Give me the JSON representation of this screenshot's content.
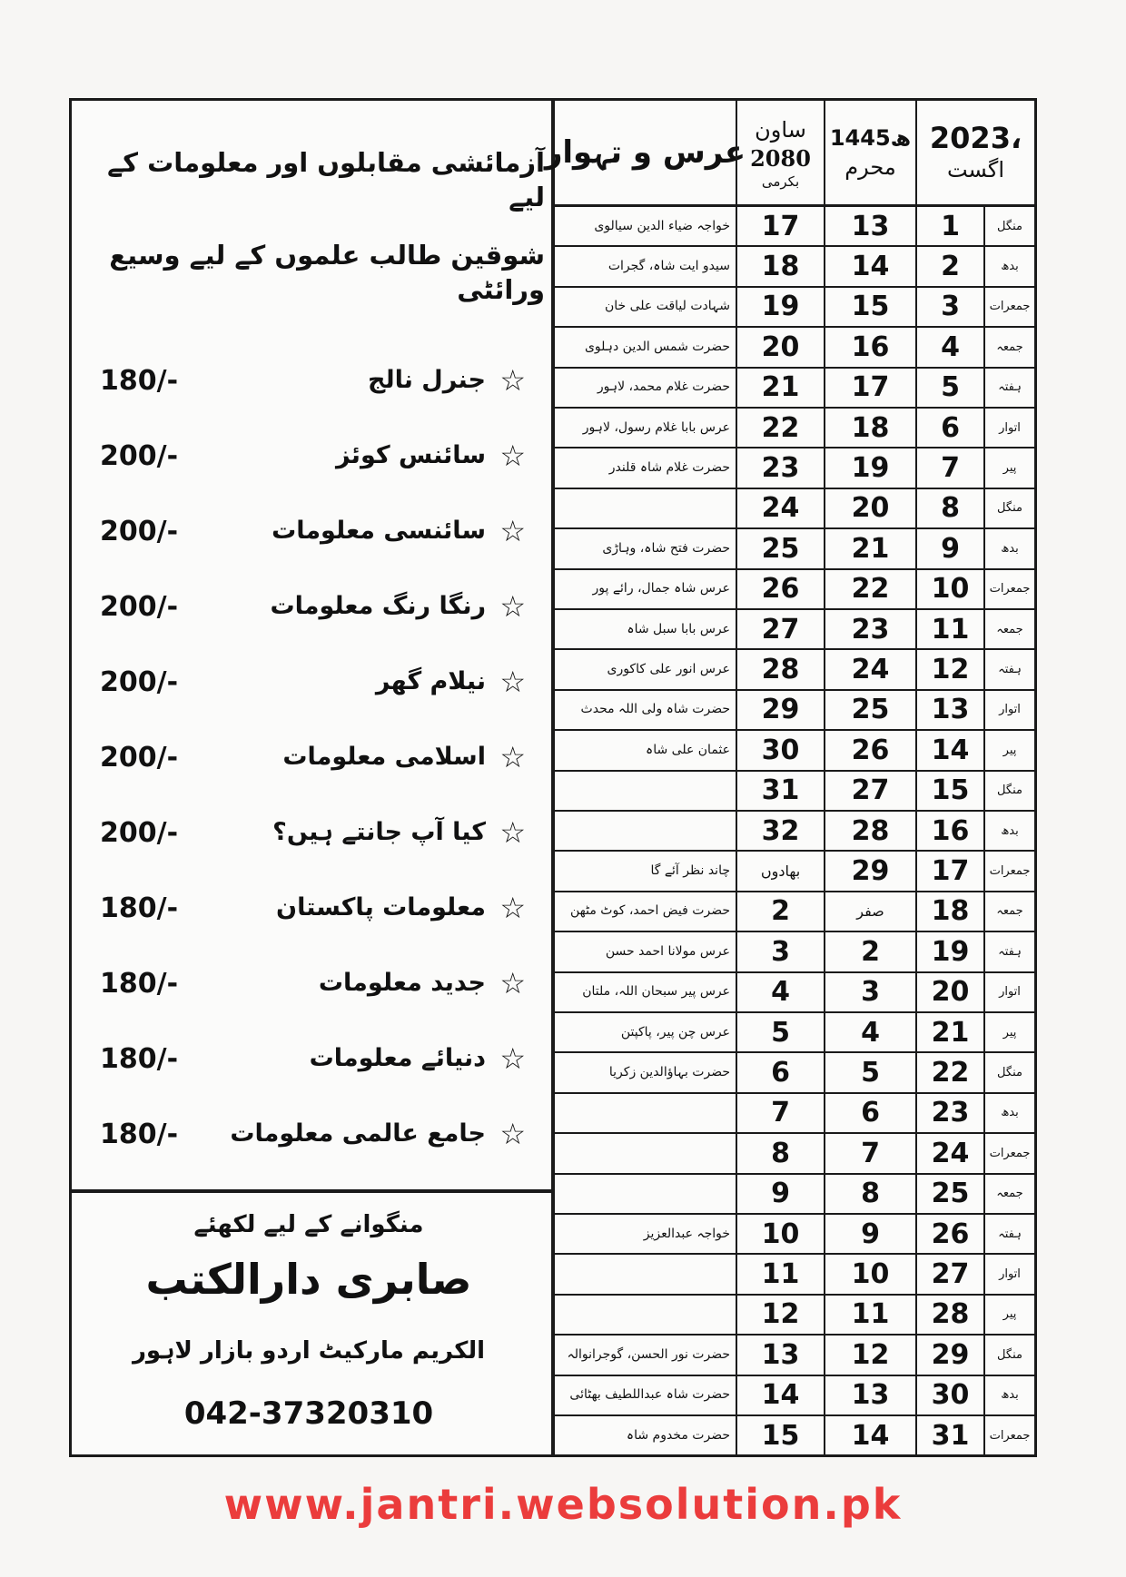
{
  "left_panel": {
    "headline_1": "آزمائشی مقابلوں اور معلومات کے لیے",
    "headline_2": "شوقین طالب علموں کے لیے وسیع ورائٹی",
    "star_icon": "☆",
    "books": [
      {
        "name": "جنرل نالج",
        "price": "180/-"
      },
      {
        "name": "سائنس کوئز",
        "price": "200/-"
      },
      {
        "name": "سائنسی معلومات",
        "price": "200/-"
      },
      {
        "name": "رنگا رنگ معلومات",
        "price": "200/-"
      },
      {
        "name": "نیلام گھر",
        "price": "200/-"
      },
      {
        "name": "اسلامی معلومات",
        "price": "200/-"
      },
      {
        "name": "کیا آپ جانتے ہیں؟",
        "price": "200/-"
      },
      {
        "name": "معلومات پاکستان",
        "price": "180/-"
      },
      {
        "name": "جدید معلومات",
        "price": "180/-"
      },
      {
        "name": "دنیائے معلومات",
        "price": "180/-"
      },
      {
        "name": "جامع عالمی معلومات",
        "price": "180/-"
      }
    ],
    "footer": {
      "order_note": "منگوانے کے لیے لکھئے",
      "publisher": "صابری دارالکتب",
      "address": "الکریم مارکیٹ اردو بازار لاہور",
      "phone": "042-37320310"
    }
  },
  "calendar": {
    "header": {
      "events": "عرس و تہوار",
      "vikram_month": "ساون",
      "vikram_year": "2080",
      "vikram_label": "بکرمی",
      "hijri_year": "1445ھ",
      "hijri_month": "محرم",
      "greg_year": "2023،",
      "greg_month": "اگست"
    },
    "rows": [
      {
        "day": "منگل",
        "date": "1",
        "hijri": "13",
        "vikram": "17",
        "event": "خواجہ ضیاء الدین سیالوی"
      },
      {
        "day": "بدھ",
        "date": "2",
        "hijri": "14",
        "vikram": "18",
        "event": "سیدو ایت شاہ، گجرات"
      },
      {
        "day": "جمعرات",
        "date": "3",
        "hijri": "15",
        "vikram": "19",
        "event": "شہادت لیاقت علی خان"
      },
      {
        "day": "جمعہ",
        "date": "4",
        "hijri": "16",
        "vikram": "20",
        "event": "حضرت شمس الدین دہلوی"
      },
      {
        "day": "ہفتہ",
        "date": "5",
        "hijri": "17",
        "vikram": "21",
        "event": "حضرت غلام محمد، لاہور"
      },
      {
        "day": "اتوار",
        "date": "6",
        "hijri": "18",
        "vikram": "22",
        "event": "عرس بابا غلام رسول، لاہور"
      },
      {
        "day": "پیر",
        "date": "7",
        "hijri": "19",
        "vikram": "23",
        "event": "حضرت غلام شاہ قلندر"
      },
      {
        "day": "منگل",
        "date": "8",
        "hijri": "20",
        "vikram": "24",
        "event": ""
      },
      {
        "day": "بدھ",
        "date": "9",
        "hijri": "21",
        "vikram": "25",
        "event": "حضرت فتح شاہ، وہاڑی"
      },
      {
        "day": "جمعرات",
        "date": "10",
        "hijri": "22",
        "vikram": "26",
        "event": "عرس شاہ جمال، رائے پور"
      },
      {
        "day": "جمعہ",
        "date": "11",
        "hijri": "23",
        "vikram": "27",
        "event": "عرس بابا سبل شاہ"
      },
      {
        "day": "ہفتہ",
        "date": "12",
        "hijri": "24",
        "vikram": "28",
        "event": "عرس انور علی کاکوری"
      },
      {
        "day": "اتوار",
        "date": "13",
        "hijri": "25",
        "vikram": "29",
        "event": "حضرت شاہ ولی اللہ محدث"
      },
      {
        "day": "پیر",
        "date": "14",
        "hijri": "26",
        "vikram": "30",
        "event": "عثمان علی شاہ"
      },
      {
        "day": "منگل",
        "date": "15",
        "hijri": "27",
        "vikram": "31",
        "event": ""
      },
      {
        "day": "بدھ",
        "date": "16",
        "hijri": "28",
        "vikram": "32",
        "event": ""
      },
      {
        "day": "جمعرات",
        "date": "17",
        "hijri": "29",
        "vikram": "بھادوں",
        "event": "چاند نظر آئے گا"
      },
      {
        "day": "جمعہ",
        "date": "18",
        "hijri": "صفر",
        "vikram": "2",
        "event": "حضرت فیض احمد، کوٹ مٹھن"
      },
      {
        "day": "ہفتہ",
        "date": "19",
        "hijri": "2",
        "vikram": "3",
        "event": "عرس مولانا احمد حسن"
      },
      {
        "day": "اتوار",
        "date": "20",
        "hijri": "3",
        "vikram": "4",
        "event": "عرس پیر سبحان اللہ، ملتان"
      },
      {
        "day": "پیر",
        "date": "21",
        "hijri": "4",
        "vikram": "5",
        "event": "عرس چن پیر، پاکپتن"
      },
      {
        "day": "منگل",
        "date": "22",
        "hijri": "5",
        "vikram": "6",
        "event": "حضرت بہاؤالدین زکریا"
      },
      {
        "day": "بدھ",
        "date": "23",
        "hijri": "6",
        "vikram": "7",
        "event": ""
      },
      {
        "day": "جمعرات",
        "date": "24",
        "hijri": "7",
        "vikram": "8",
        "event": ""
      },
      {
        "day": "جمعہ",
        "date": "25",
        "hijri": "8",
        "vikram": "9",
        "event": ""
      },
      {
        "day": "ہفتہ",
        "date": "26",
        "hijri": "9",
        "vikram": "10",
        "event": "خواجہ عبدالعزیز"
      },
      {
        "day": "اتوار",
        "date": "27",
        "hijri": "10",
        "vikram": "11",
        "event": ""
      },
      {
        "day": "پیر",
        "date": "28",
        "hijri": "11",
        "vikram": "12",
        "event": ""
      },
      {
        "day": "منگل",
        "date": "29",
        "hijri": "12",
        "vikram": "13",
        "event": "حضرت نور الحسن، گوجرانوالہ"
      },
      {
        "day": "بدھ",
        "date": "30",
        "hijri": "13",
        "vikram": "14",
        "event": "حضرت شاہ عبداللطیف بھٹائی"
      },
      {
        "day": "جمعرات",
        "date": "31",
        "hijri": "14",
        "vikram": "15",
        "event": "حضرت مخدوم شاہ"
      }
    ]
  },
  "watermark": "www.jantri.websolution.pk",
  "colors": {
    "ink": "#111111",
    "watermark": "#eb3c3c"
  }
}
